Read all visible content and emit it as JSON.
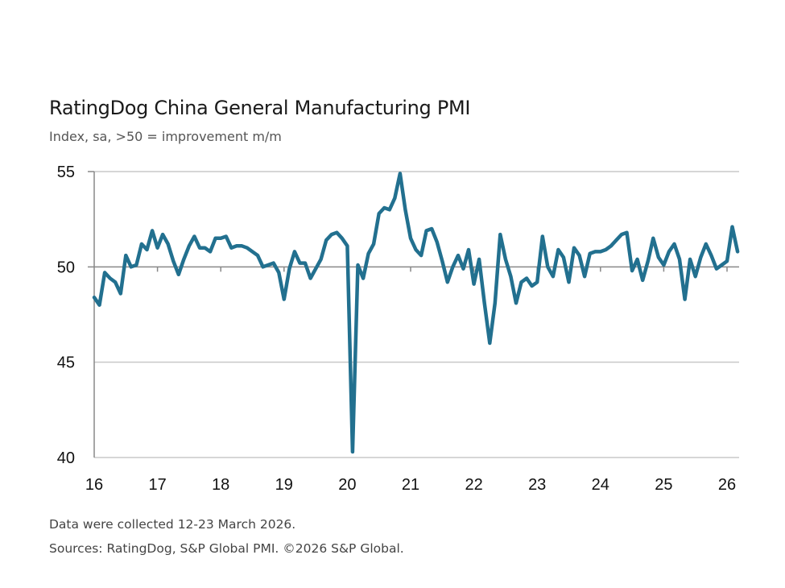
{
  "chart_data": {
    "type": "line",
    "title": "RatingDog China General Manufacturing PMI",
    "subtitle": "Index, sa, >50 = improvement m/m",
    "xlabel": "",
    "ylabel": "",
    "start": "2016-01",
    "frequency": "monthly",
    "x_ticks": [
      "16",
      "17",
      "18",
      "19",
      "20",
      "21",
      "22",
      "23",
      "24",
      "25",
      "26"
    ],
    "y_ticks": [
      40,
      45,
      50,
      55
    ],
    "ylim": [
      40,
      55
    ],
    "grid": true,
    "reference_line": 50,
    "line_color": "#22708f",
    "values": [
      48.4,
      48.0,
      49.7,
      49.4,
      49.2,
      48.6,
      50.6,
      50.0,
      50.1,
      51.2,
      50.9,
      51.9,
      51.0,
      51.7,
      51.2,
      50.3,
      49.6,
      50.4,
      51.1,
      51.6,
      51.0,
      51.0,
      50.8,
      51.5,
      51.5,
      51.6,
      51.0,
      51.1,
      51.1,
      51.0,
      50.8,
      50.6,
      50.0,
      50.1,
      50.2,
      49.7,
      48.3,
      49.9,
      50.8,
      50.2,
      50.2,
      49.4,
      49.9,
      50.4,
      51.4,
      51.7,
      51.8,
      51.5,
      51.1,
      40.3,
      50.1,
      49.4,
      50.7,
      51.2,
      52.8,
      53.1,
      53.0,
      53.6,
      54.9,
      53.0,
      51.5,
      50.9,
      50.6,
      51.9,
      52.0,
      51.3,
      50.3,
      49.2,
      50.0,
      50.6,
      49.9,
      50.9,
      49.1,
      50.4,
      48.1,
      46.0,
      48.1,
      51.7,
      50.4,
      49.5,
      48.1,
      49.2,
      49.4,
      49.0,
      49.2,
      51.6,
      50.0,
      49.5,
      50.9,
      50.5,
      49.2,
      51.0,
      50.6,
      49.5,
      50.7,
      50.8,
      50.8,
      50.9,
      51.1,
      51.4,
      51.7,
      51.8,
      49.8,
      50.4,
      49.3,
      50.3,
      51.5,
      50.5,
      50.1,
      50.8,
      51.2,
      50.4,
      48.3,
      50.4,
      49.5,
      50.5,
      51.2,
      50.6,
      49.9,
      50.1,
      50.3,
      52.1,
      50.8
    ]
  },
  "footer": {
    "collection_note": "Data were collected 12-23 March 2026.",
    "sources": "Sources: RatingDog, S&P Global PMI. ©2026 S&P Global."
  }
}
